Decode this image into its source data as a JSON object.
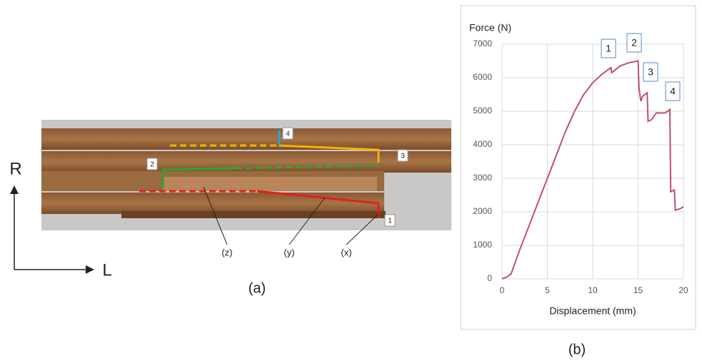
{
  "figure": {
    "panel_a": {
      "label": "(a)",
      "axes": {
        "vertical": "R",
        "horizontal": "L"
      },
      "markers": [
        "1",
        "2",
        "3",
        "4"
      ],
      "callouts": [
        "(z)",
        "(y)",
        "(x)"
      ]
    },
    "panel_b_label": "(b)"
  },
  "chart_data": {
    "type": "line",
    "y_label": "Force (N)",
    "x_label": "Displacement (mm)",
    "x": [
      0,
      0.5,
      1,
      2,
      3,
      4,
      5,
      6,
      7,
      8,
      9,
      10,
      11,
      12,
      12.1,
      13,
      14,
      15,
      15.1,
      15.3,
      15.5,
      16,
      16.1,
      16.5,
      17,
      18,
      18.5,
      18.6,
      19,
      19.1,
      19.7,
      20
    ],
    "series": [
      {
        "color": "#c0506e",
        "values": [
          0,
          50,
          150,
          900,
          1600,
          2300,
          3000,
          3700,
          4400,
          5000,
          5500,
          5850,
          6100,
          6300,
          6150,
          6350,
          6450,
          6500,
          5700,
          5300,
          5450,
          5550,
          4700,
          4750,
          4950,
          4950,
          5050,
          2600,
          2650,
          2050,
          2100,
          2150
        ]
      }
    ],
    "xlim": [
      0,
      20
    ],
    "xticks": [
      0,
      5,
      10,
      15,
      20
    ],
    "ylim": [
      0,
      7000
    ],
    "yticks": [
      0,
      1000,
      2000,
      3000,
      4000,
      5000,
      6000,
      7000
    ],
    "grid": true,
    "annotations": [
      "1",
      "2",
      "3",
      "4"
    ]
  }
}
